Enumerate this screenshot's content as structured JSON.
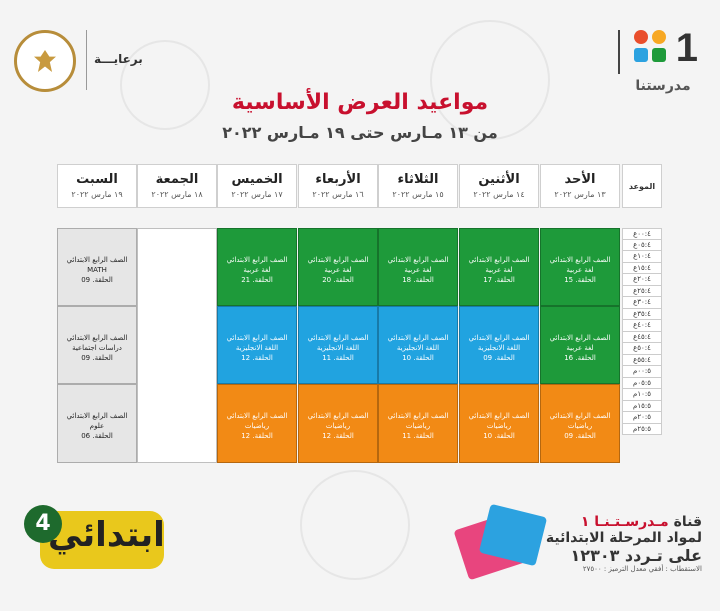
{
  "brand": {
    "number": "1",
    "name": "مدرستنا",
    "colors": [
      "#e94e2c",
      "#f7a823",
      "#2ca2e0",
      "#1e9a3a"
    ]
  },
  "sponsor": {
    "text": "برعايـــة",
    "seal_icon": "egypt-eagle-icon"
  },
  "header": {
    "title": "مواعيد العرض الأساسية",
    "subtitle": "من ١٣ مـارس حتى ١٩ مـارس ٢٠٢٢"
  },
  "table": {
    "time_header": "الموعد",
    "days": [
      {
        "name": "الأحد",
        "date": "١٣ مارس ٢٠٢٢"
      },
      {
        "name": "الأثنين",
        "date": "١٤ مارس ٢٠٢٢"
      },
      {
        "name": "الثلاثاء",
        "date": "١٥ مارس ٢٠٢٢"
      },
      {
        "name": "الأربعاء",
        "date": "١٦ مارس ٢٠٢٢"
      },
      {
        "name": "الخميس",
        "date": "١٧ مارس ٢٠٢٢"
      },
      {
        "name": "الجمعة",
        "date": "١٨ مارس ٢٠٢٢"
      },
      {
        "name": "السبت",
        "date": "١٩ مارس ٢٠٢٢"
      }
    ],
    "times": [
      "٠٠:٤ع",
      "٠٥:٤ع",
      "١٠:٤ع",
      "١٥:٤ع",
      "٢٠:٤ع",
      "٢٥:٤ع",
      "٣٠:٤ع",
      "٣٥:٤ع",
      "٤٠:٤ع",
      "٤٥:٤ع",
      "٥٠:٤ع",
      "٥٥:٤ع",
      "٠٠:٥م",
      "٠٥:٥م",
      "١٠:٥م",
      "١٥:٥م",
      "٢٠:٥م",
      "٢٥:٥م"
    ],
    "blocks": {
      "sun1": {
        "l1": "الصف الرابع الابتدائي",
        "l2": "لغة عربية",
        "l3": "الحلقة. 15"
      },
      "mon1": {
        "l1": "الصف الرابع الابتدائي",
        "l2": "لغة عربية",
        "l3": "الحلقة. 17"
      },
      "tue1": {
        "l1": "الصف الرابع الابتدائي",
        "l2": "لغة عربية",
        "l3": "الحلقة. 18"
      },
      "wed1": {
        "l1": "الصف الرابع الابتدائي",
        "l2": "لغة عربية",
        "l3": "الحلقة. 20"
      },
      "thu1": {
        "l1": "الصف الرابع الابتدائي",
        "l2": "لغة عربية",
        "l3": "الحلقة. 21"
      },
      "sat1": {
        "l1": "الصف الرابع الابتدائي",
        "l2": "MATH",
        "l3": "الحلقة. 09"
      },
      "sun2": {
        "l1": "الصف الرابع الابتدائي",
        "l2": "لغة عربية",
        "l3": "الحلقة. 16"
      },
      "mon2": {
        "l1": "الصف الرابع الابتدائي",
        "l2": "اللغة الانجليزية",
        "l3": "الحلقة. 09"
      },
      "tue2": {
        "l1": "الصف الرابع الابتدائي",
        "l2": "اللغة الانجليزية",
        "l3": "الحلقة. 10"
      },
      "wed2": {
        "l1": "الصف الرابع الابتدائي",
        "l2": "اللغة الانجليزية",
        "l3": "الحلقة. 11"
      },
      "thu2": {
        "l1": "الصف الرابع الابتدائي",
        "l2": "اللغة الانجليزية",
        "l3": "الحلقة. 12"
      },
      "sat2": {
        "l1": "الصف الرابع الابتدائي",
        "l2": "دراسات اجتماعية",
        "l3": "الحلقة. 09"
      },
      "sun3": {
        "l1": "الصف الرابع الابتدائي",
        "l2": "رياضيات",
        "l3": "الحلقة. 09"
      },
      "mon3": {
        "l1": "الصف الرابع الابتدائي",
        "l2": "رياضيات",
        "l3": "الحلقة. 10"
      },
      "tue3": {
        "l1": "الصف الرابع الابتدائي",
        "l2": "رياضيات",
        "l3": "الحلقة. 11"
      },
      "wed3": {
        "l1": "الصف الرابع الابتدائي",
        "l2": "رياضيات",
        "l3": "الحلقة. 12"
      },
      "thu3": {
        "l1": "الصف الرابع الابتدائي",
        "l2": "رياضيات",
        "l3": "الحلقة. 12"
      },
      "sat3": {
        "l1": "الصف الرابع الابتدائي",
        "l2": "علوم",
        "l3": "الحلقة. 06"
      }
    },
    "colors": {
      "arabic": "#1e9a3a",
      "english": "#21a3e0",
      "math": "#f28a15",
      "other": "#e6e6e6"
    }
  },
  "footer": {
    "channel_prefix": "قناة ",
    "channel_name": "مـدرسـتـنـا ١",
    "line2": "لمواد المرحلة الابتدائية",
    "line3": "على تـردد ١٢٣٠٣",
    "line4": "الاستقطاب : أفقي معدل الترميز : ٢٧٥٠٠",
    "badge_text": "ابتدائي",
    "badge_number": "4"
  }
}
